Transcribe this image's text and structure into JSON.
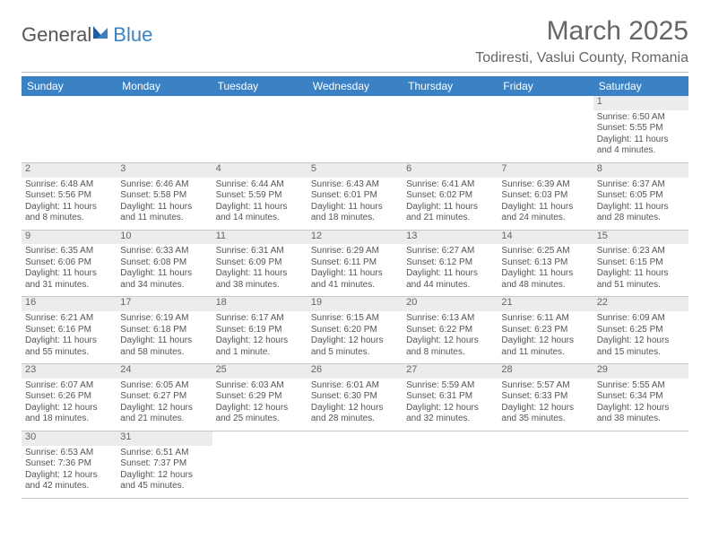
{
  "logo": {
    "part1": "General",
    "part2": "Blue"
  },
  "title": "March 2025",
  "location": "Todiresti, Vaslui County, Romania",
  "colors": {
    "accent": "#3b82c4",
    "text": "#555555",
    "shade": "#ececec",
    "rule": "#c8c8c8"
  },
  "daynames": [
    "Sunday",
    "Monday",
    "Tuesday",
    "Wednesday",
    "Thursday",
    "Friday",
    "Saturday"
  ],
  "weeks": [
    [
      null,
      null,
      null,
      null,
      null,
      null,
      {
        "n": "1",
        "sr": "Sunrise: 6:50 AM",
        "ss": "Sunset: 5:55 PM",
        "d1": "Daylight: 11 hours",
        "d2": "and 4 minutes."
      }
    ],
    [
      {
        "n": "2",
        "sr": "Sunrise: 6:48 AM",
        "ss": "Sunset: 5:56 PM",
        "d1": "Daylight: 11 hours",
        "d2": "and 8 minutes."
      },
      {
        "n": "3",
        "sr": "Sunrise: 6:46 AM",
        "ss": "Sunset: 5:58 PM",
        "d1": "Daylight: 11 hours",
        "d2": "and 11 minutes."
      },
      {
        "n": "4",
        "sr": "Sunrise: 6:44 AM",
        "ss": "Sunset: 5:59 PM",
        "d1": "Daylight: 11 hours",
        "d2": "and 14 minutes."
      },
      {
        "n": "5",
        "sr": "Sunrise: 6:43 AM",
        "ss": "Sunset: 6:01 PM",
        "d1": "Daylight: 11 hours",
        "d2": "and 18 minutes."
      },
      {
        "n": "6",
        "sr": "Sunrise: 6:41 AM",
        "ss": "Sunset: 6:02 PM",
        "d1": "Daylight: 11 hours",
        "d2": "and 21 minutes."
      },
      {
        "n": "7",
        "sr": "Sunrise: 6:39 AM",
        "ss": "Sunset: 6:03 PM",
        "d1": "Daylight: 11 hours",
        "d2": "and 24 minutes."
      },
      {
        "n": "8",
        "sr": "Sunrise: 6:37 AM",
        "ss": "Sunset: 6:05 PM",
        "d1": "Daylight: 11 hours",
        "d2": "and 28 minutes."
      }
    ],
    [
      {
        "n": "9",
        "sr": "Sunrise: 6:35 AM",
        "ss": "Sunset: 6:06 PM",
        "d1": "Daylight: 11 hours",
        "d2": "and 31 minutes."
      },
      {
        "n": "10",
        "sr": "Sunrise: 6:33 AM",
        "ss": "Sunset: 6:08 PM",
        "d1": "Daylight: 11 hours",
        "d2": "and 34 minutes."
      },
      {
        "n": "11",
        "sr": "Sunrise: 6:31 AM",
        "ss": "Sunset: 6:09 PM",
        "d1": "Daylight: 11 hours",
        "d2": "and 38 minutes."
      },
      {
        "n": "12",
        "sr": "Sunrise: 6:29 AM",
        "ss": "Sunset: 6:11 PM",
        "d1": "Daylight: 11 hours",
        "d2": "and 41 minutes."
      },
      {
        "n": "13",
        "sr": "Sunrise: 6:27 AM",
        "ss": "Sunset: 6:12 PM",
        "d1": "Daylight: 11 hours",
        "d2": "and 44 minutes."
      },
      {
        "n": "14",
        "sr": "Sunrise: 6:25 AM",
        "ss": "Sunset: 6:13 PM",
        "d1": "Daylight: 11 hours",
        "d2": "and 48 minutes."
      },
      {
        "n": "15",
        "sr": "Sunrise: 6:23 AM",
        "ss": "Sunset: 6:15 PM",
        "d1": "Daylight: 11 hours",
        "d2": "and 51 minutes."
      }
    ],
    [
      {
        "n": "16",
        "sr": "Sunrise: 6:21 AM",
        "ss": "Sunset: 6:16 PM",
        "d1": "Daylight: 11 hours",
        "d2": "and 55 minutes."
      },
      {
        "n": "17",
        "sr": "Sunrise: 6:19 AM",
        "ss": "Sunset: 6:18 PM",
        "d1": "Daylight: 11 hours",
        "d2": "and 58 minutes."
      },
      {
        "n": "18",
        "sr": "Sunrise: 6:17 AM",
        "ss": "Sunset: 6:19 PM",
        "d1": "Daylight: 12 hours",
        "d2": "and 1 minute."
      },
      {
        "n": "19",
        "sr": "Sunrise: 6:15 AM",
        "ss": "Sunset: 6:20 PM",
        "d1": "Daylight: 12 hours",
        "d2": "and 5 minutes."
      },
      {
        "n": "20",
        "sr": "Sunrise: 6:13 AM",
        "ss": "Sunset: 6:22 PM",
        "d1": "Daylight: 12 hours",
        "d2": "and 8 minutes."
      },
      {
        "n": "21",
        "sr": "Sunrise: 6:11 AM",
        "ss": "Sunset: 6:23 PM",
        "d1": "Daylight: 12 hours",
        "d2": "and 11 minutes."
      },
      {
        "n": "22",
        "sr": "Sunrise: 6:09 AM",
        "ss": "Sunset: 6:25 PM",
        "d1": "Daylight: 12 hours",
        "d2": "and 15 minutes."
      }
    ],
    [
      {
        "n": "23",
        "sr": "Sunrise: 6:07 AM",
        "ss": "Sunset: 6:26 PM",
        "d1": "Daylight: 12 hours",
        "d2": "and 18 minutes."
      },
      {
        "n": "24",
        "sr": "Sunrise: 6:05 AM",
        "ss": "Sunset: 6:27 PM",
        "d1": "Daylight: 12 hours",
        "d2": "and 21 minutes."
      },
      {
        "n": "25",
        "sr": "Sunrise: 6:03 AM",
        "ss": "Sunset: 6:29 PM",
        "d1": "Daylight: 12 hours",
        "d2": "and 25 minutes."
      },
      {
        "n": "26",
        "sr": "Sunrise: 6:01 AM",
        "ss": "Sunset: 6:30 PM",
        "d1": "Daylight: 12 hours",
        "d2": "and 28 minutes."
      },
      {
        "n": "27",
        "sr": "Sunrise: 5:59 AM",
        "ss": "Sunset: 6:31 PM",
        "d1": "Daylight: 12 hours",
        "d2": "and 32 minutes."
      },
      {
        "n": "28",
        "sr": "Sunrise: 5:57 AM",
        "ss": "Sunset: 6:33 PM",
        "d1": "Daylight: 12 hours",
        "d2": "and 35 minutes."
      },
      {
        "n": "29",
        "sr": "Sunrise: 5:55 AM",
        "ss": "Sunset: 6:34 PM",
        "d1": "Daylight: 12 hours",
        "d2": "and 38 minutes."
      }
    ],
    [
      {
        "n": "30",
        "sr": "Sunrise: 6:53 AM",
        "ss": "Sunset: 7:36 PM",
        "d1": "Daylight: 12 hours",
        "d2": "and 42 minutes."
      },
      {
        "n": "31",
        "sr": "Sunrise: 6:51 AM",
        "ss": "Sunset: 7:37 PM",
        "d1": "Daylight: 12 hours",
        "d2": "and 45 minutes."
      },
      null,
      null,
      null,
      null,
      null
    ]
  ]
}
